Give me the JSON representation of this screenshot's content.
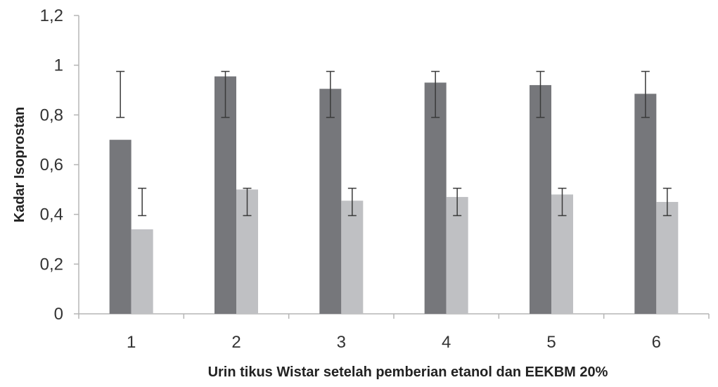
{
  "chart_data": {
    "type": "bar",
    "title": "",
    "xlabel": "Urin tikus Wistar setelah pemberian etanol dan EEKBM 20%",
    "ylabel": "Kadar Isoprostan",
    "categories": [
      "1",
      "2",
      "3",
      "4",
      "5",
      "6"
    ],
    "ylim": [
      0,
      1.2
    ],
    "yticks": [
      0,
      0.2,
      0.4,
      0.6,
      0.8,
      1.0,
      1.2
    ],
    "ytick_labels": [
      "0",
      "0,2",
      "0,4",
      "0,6",
      "0,8",
      "1",
      "1,2"
    ],
    "grid": false,
    "legend": "none",
    "series": [
      {
        "color": "#76777b",
        "values": [
          0.7,
          0.955,
          0.905,
          0.93,
          0.92,
          0.885
        ],
        "error_low": [
          0.79,
          0.79,
          0.79,
          0.79,
          0.79,
          0.79
        ],
        "error_high": [
          0.975,
          0.975,
          0.975,
          0.975,
          0.975,
          0.975
        ]
      },
      {
        "color": "#bfc0c3",
        "values": [
          0.34,
          0.5,
          0.455,
          0.47,
          0.48,
          0.45
        ],
        "error_low": [
          0.395,
          0.395,
          0.395,
          0.395,
          0.395,
          0.395
        ],
        "error_high": [
          0.505,
          0.505,
          0.505,
          0.505,
          0.505,
          0.505
        ]
      }
    ]
  }
}
